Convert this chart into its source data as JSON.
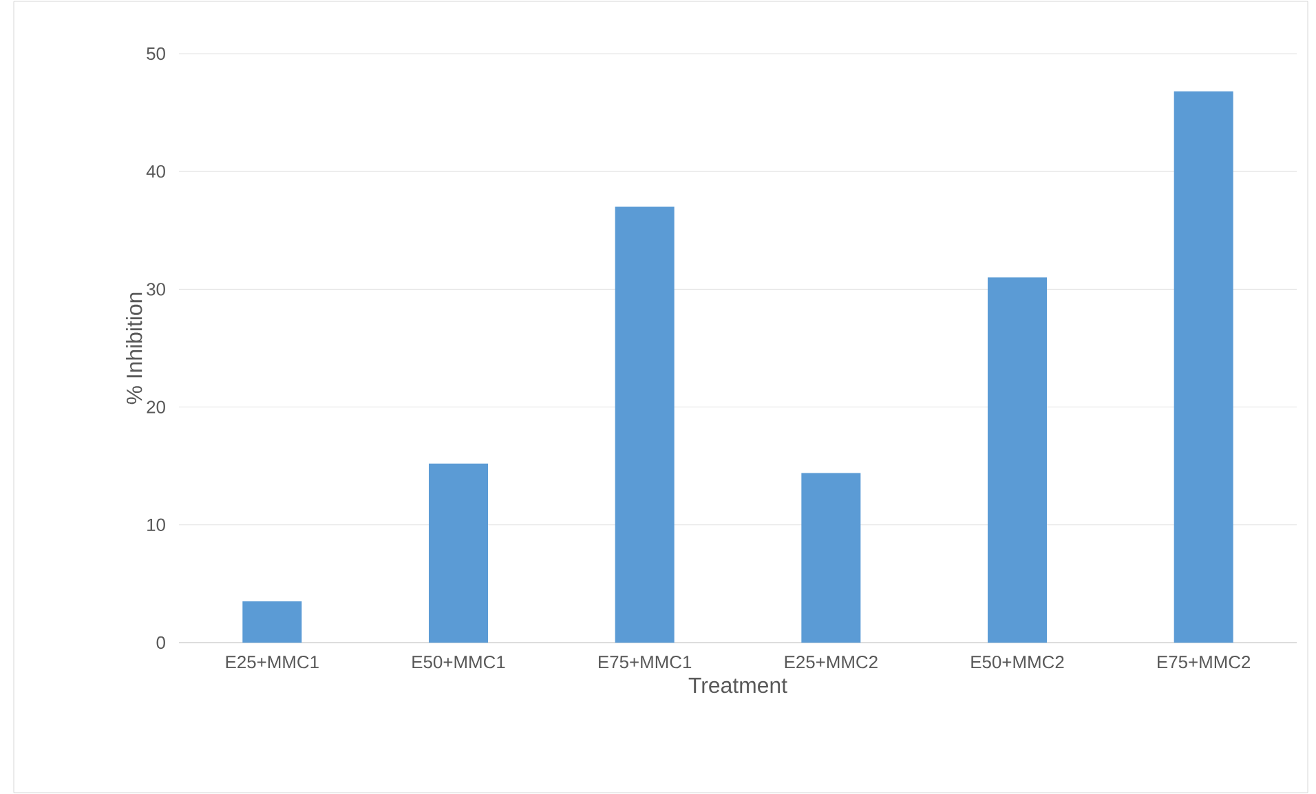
{
  "chart_data": {
    "type": "bar",
    "xlabel": "Treatment",
    "ylabel": "% Inhibition",
    "categories": [
      "E25+MMC1",
      "E50+MMC1",
      "E75+MMC1",
      "E25+MMC2",
      "E50+MMC2",
      "E75+MMC2"
    ],
    "values": [
      3.5,
      15.2,
      37.0,
      14.4,
      31.0,
      46.8
    ],
    "color": "#5b9bd5",
    "ylim": [
      0,
      50
    ],
    "yticks": [
      0,
      10,
      20,
      30,
      40,
      50
    ],
    "grid": "y"
  }
}
